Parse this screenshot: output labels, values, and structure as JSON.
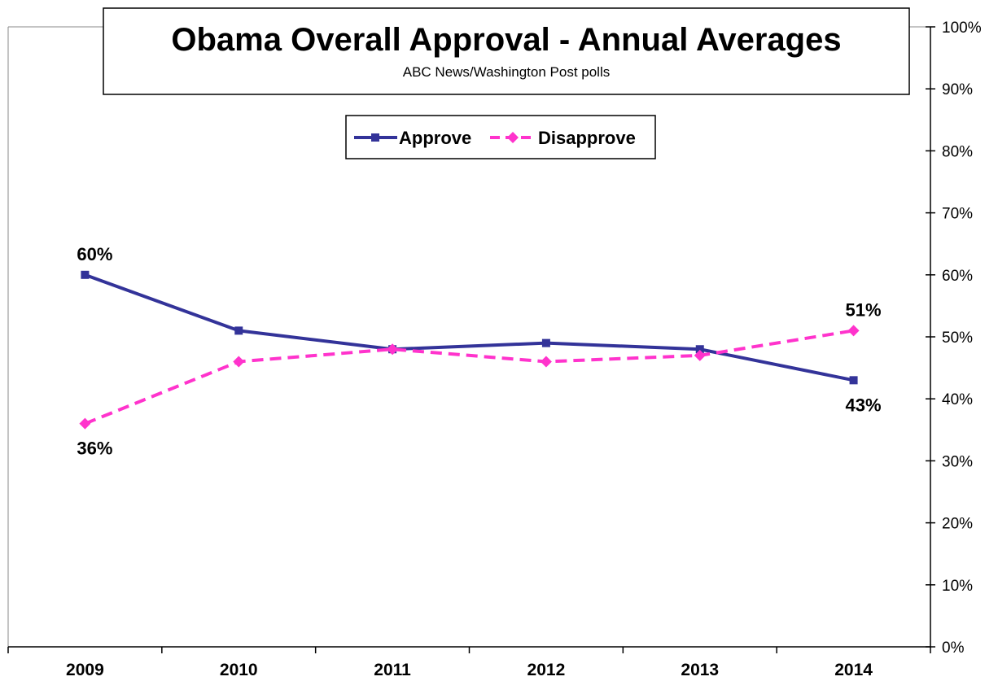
{
  "chart_data": {
    "type": "line",
    "title": "Obama Overall Approval - Annual Averages",
    "subtitle": "ABC News/Washington  Post polls",
    "categories": [
      "2009",
      "2010",
      "2011",
      "2012",
      "2013",
      "2014"
    ],
    "y_axis": {
      "range": [
        0,
        100
      ],
      "side": "right",
      "ticks": [
        "0%",
        "10%",
        "20%",
        "30%",
        "40%",
        "50%",
        "60%",
        "70%",
        "80%",
        "90%",
        "100%"
      ]
    },
    "grid": false,
    "legend_position": "top-center",
    "series": [
      {
        "name": "Approve",
        "values": [
          60,
          51,
          48,
          49,
          48,
          43
        ],
        "color": "#333399",
        "dash": "solid",
        "marker": "square"
      },
      {
        "name": "Disapprove",
        "values": [
          36,
          46,
          48,
          46,
          47,
          51
        ],
        "color": "#ff33cc",
        "dash": "dashed",
        "marker": "diamond"
      }
    ],
    "annotations": [
      {
        "series": "Approve",
        "category": "2009",
        "text": "60%"
      },
      {
        "series": "Disapprove",
        "category": "2009",
        "text": "36%"
      },
      {
        "series": "Disapprove",
        "category": "2014",
        "text": "51%"
      },
      {
        "series": "Approve",
        "category": "2014",
        "text": "43%"
      }
    ]
  }
}
